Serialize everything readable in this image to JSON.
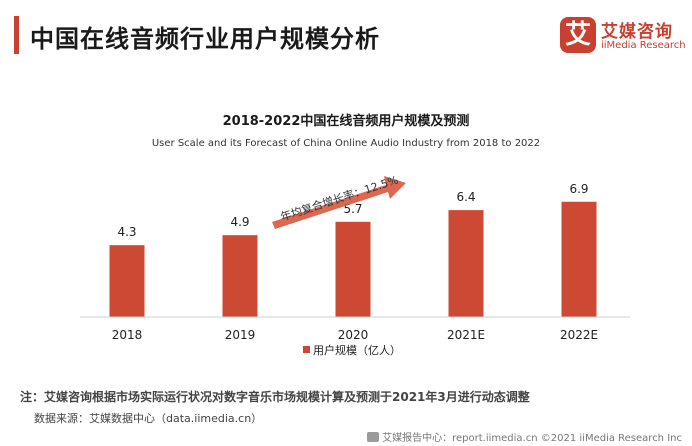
{
  "page": {
    "title": "中国在线音频行业用户规模分析",
    "note": "注：艾媒咨询根据市场实际运行状况对数字音乐市场规模计算及预测于2021年3月进行动态调整",
    "source": "数据来源：艾媒数据中心（data.iimedia.cn）",
    "footer": "艾媒报告中心：report.iimedia.cn ©2021  iiMedia Research  Inc"
  },
  "logo": {
    "glyph": "艾",
    "cn": "艾媒咨询",
    "en": "iiMedia Research"
  },
  "colors": {
    "accent": "#c8402f",
    "bar": "#cc4a33",
    "arrow": "#d9583f"
  },
  "chart_data": {
    "type": "bar",
    "title": "2018-2022中国在线音频用户规模及预测",
    "subtitle": "User Scale and its Forecast of China Online Audio Industry from 2018 to 2022",
    "categories": [
      "2018",
      "2019",
      "2020",
      "2021E",
      "2022E"
    ],
    "series": [
      {
        "name": "用户规模（亿人）",
        "values": [
          4.3,
          4.9,
          5.7,
          6.4,
          6.9
        ]
      }
    ],
    "ylim": [
      0,
      10
    ],
    "annotation": "年均复合增长率：12.5%",
    "grid": false,
    "legend": "bottom-center"
  }
}
